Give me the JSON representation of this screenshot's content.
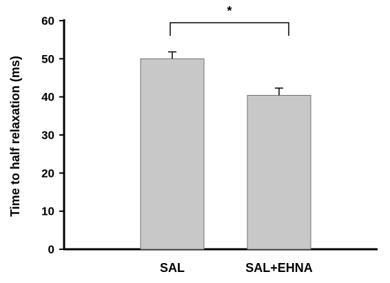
{
  "chart_data": {
    "type": "bar",
    "title": "",
    "xlabel": "",
    "ylabel": "Time to half relaxation (ms)",
    "categories": [
      "SAL",
      "SAL+EHNA"
    ],
    "values": [
      50.0,
      40.4
    ],
    "error": [
      1.8,
      1.9
    ],
    "ylim": [
      0,
      60
    ],
    "yticks": [
      0,
      10,
      20,
      30,
      40,
      50,
      60
    ],
    "grid": false,
    "legend": "none",
    "bar_color": "#c8c8c8",
    "bar_edge_color": "#6e6e6e",
    "significance": {
      "between": [
        "SAL",
        "SAL+EHNA"
      ],
      "label": "*"
    }
  }
}
